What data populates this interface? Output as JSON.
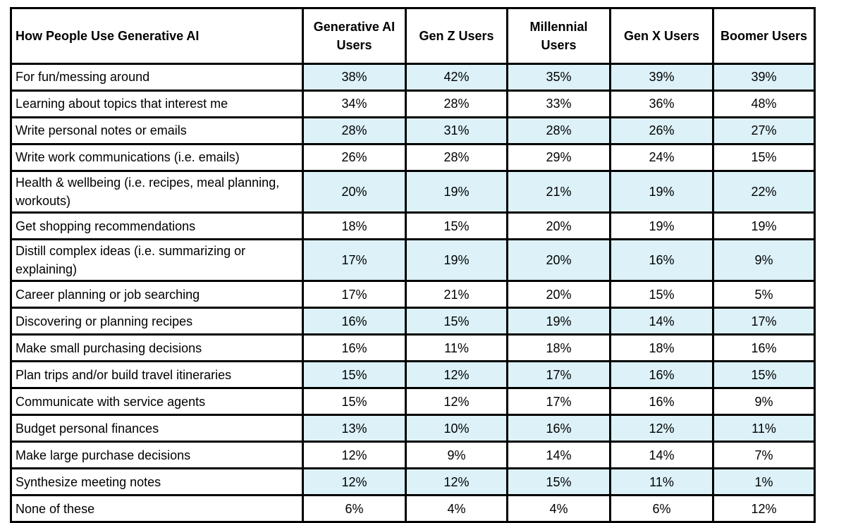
{
  "chart_data": {
    "type": "table",
    "title": "How People Use Generative AI",
    "columns": [
      "Generative AI Users",
      "Gen Z Users",
      "Millennial Users",
      "Gen X Users",
      "Boomer Users"
    ],
    "rows": [
      {
        "label": "For fun/messing around",
        "values": [
          "38%",
          "42%",
          "35%",
          "39%",
          "39%"
        ]
      },
      {
        "label": "Learning about topics that interest me",
        "values": [
          "34%",
          "28%",
          "33%",
          "36%",
          "48%"
        ]
      },
      {
        "label": "Write personal notes or emails",
        "values": [
          "28%",
          "31%",
          "28%",
          "26%",
          "27%"
        ]
      },
      {
        "label": "Write work communications (i.e. emails)",
        "values": [
          "26%",
          "28%",
          "29%",
          "24%",
          "15%"
        ]
      },
      {
        "label": "Health & wellbeing (i.e. recipes, meal planning, workouts)",
        "values": [
          "20%",
          "19%",
          "21%",
          "19%",
          "22%"
        ]
      },
      {
        "label": "Get shopping recommendations",
        "values": [
          "18%",
          "15%",
          "20%",
          "19%",
          "19%"
        ]
      },
      {
        "label": "Distill complex ideas (i.e. summarizing or explaining)",
        "values": [
          "17%",
          "19%",
          "20%",
          "16%",
          "9%"
        ]
      },
      {
        "label": "Career planning or job searching",
        "values": [
          "17%",
          "21%",
          "20%",
          "15%",
          "5%"
        ]
      },
      {
        "label": "Discovering or planning recipes",
        "values": [
          "16%",
          "15%",
          "19%",
          "14%",
          "17%"
        ]
      },
      {
        "label": "Make small purchasing decisions",
        "values": [
          "16%",
          "11%",
          "18%",
          "18%",
          "16%"
        ]
      },
      {
        "label": "Plan trips and/or build travel itineraries",
        "values": [
          "15%",
          "12%",
          "17%",
          "16%",
          "15%"
        ]
      },
      {
        "label": "Communicate with service agents",
        "values": [
          "15%",
          "12%",
          "17%",
          "16%",
          "9%"
        ]
      },
      {
        "label": "Budget personal finances",
        "values": [
          "13%",
          "10%",
          "16%",
          "12%",
          "11%"
        ]
      },
      {
        "label": "Make large purchase decisions",
        "values": [
          "12%",
          "9%",
          "14%",
          "14%",
          "7%"
        ]
      },
      {
        "label": "Synthesize meeting notes",
        "values": [
          "12%",
          "12%",
          "15%",
          "11%",
          "1%"
        ]
      },
      {
        "label": "None of these",
        "values": [
          "6%",
          "4%",
          "4%",
          "6%",
          "12%"
        ]
      }
    ],
    "layout_hints": {
      "shaded_row_indices": [
        0,
        2,
        4,
        6,
        8,
        10,
        12,
        14
      ],
      "shading_applies_to": "value columns only"
    },
    "colors": {
      "shaded_cell_background": "#dcf1f8",
      "plain_cell_background": "#ffffff",
      "border": "#000000",
      "text": "#000000"
    }
  }
}
